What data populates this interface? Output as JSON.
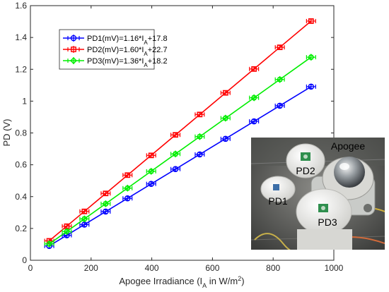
{
  "chart_data": {
    "type": "scatter",
    "xlabel": {
      "main": "Apogee  Irradiance  (I",
      "sub": "A",
      "mid": "  in  W/m",
      "sup": "2",
      "end": ")"
    },
    "ylabel": "PD (V)",
    "xlim": [
      0,
      1000
    ],
    "ylim": [
      0,
      1.6
    ],
    "xticks": [
      0,
      200,
      400,
      600,
      800,
      1000
    ],
    "yticks": [
      0,
      0.2,
      0.4,
      0.6,
      0.8,
      1,
      1.2,
      1.4,
      1.6
    ],
    "xtick_labels": [
      "0",
      "200",
      "400",
      "600",
      "800",
      "1000"
    ],
    "ytick_labels": [
      "0",
      "0.2",
      "0.4",
      "0.6",
      "0.8",
      "1",
      "1.2",
      "1.4",
      "1.6"
    ],
    "grid": false,
    "legend_position": "top-left",
    "x": [
      62,
      120,
      178,
      248,
      320,
      398,
      478,
      558,
      643,
      737,
      822,
      925
    ],
    "x_err": 15,
    "y_err": 0.012,
    "series": [
      {
        "name": "PD1(mV)=1.16*I",
        "name_sub": "A",
        "name_end": "+17.8",
        "color": "#0000ff",
        "marker": "circle",
        "values": [
          0.09,
          0.157,
          0.224,
          0.306,
          0.389,
          0.48,
          0.573,
          0.665,
          0.763,
          0.873,
          0.971,
          1.091
        ]
      },
      {
        "name": "PD2(mV)=1.60*I",
        "name_sub": "A",
        "name_end": "+22.7",
        "color": "#ff0000",
        "marker": "square",
        "values": [
          0.122,
          0.214,
          0.307,
          0.42,
          0.535,
          0.659,
          0.788,
          0.916,
          1.052,
          1.202,
          1.338,
          1.503
        ]
      },
      {
        "name": "PD3(mV)=1.36*I",
        "name_sub": "A",
        "name_end": "+18.2",
        "color": "#00ee00",
        "marker": "diamond",
        "values": [
          0.103,
          0.181,
          0.26,
          0.355,
          0.453,
          0.559,
          0.668,
          0.777,
          0.893,
          1.021,
          1.136,
          1.276
        ]
      }
    ]
  },
  "photo": {
    "labels": {
      "pd1": "PD1",
      "pd2": "PD2",
      "pd3": "PD3",
      "apogee": "Apogee"
    },
    "apogee_label_color": "#f2d21b"
  }
}
